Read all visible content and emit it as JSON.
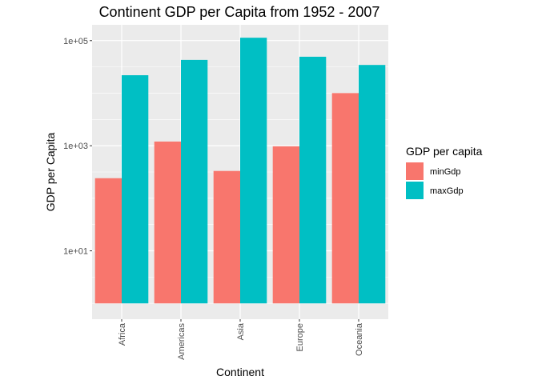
{
  "chart_data": {
    "type": "bar",
    "title": "Continent GDP per Capita from 1952 - 2007",
    "xlabel": "Continent",
    "ylabel": "GDP per Capita",
    "y_scale": "log10",
    "ylim": [
      0.5,
      200000
    ],
    "yticks": [
      10,
      1000,
      100000
    ],
    "ytick_labels": [
      "1e+01",
      "1e+03",
      "1e+05"
    ],
    "categories": [
      "Africa",
      "Americas",
      "Asia",
      "Europe",
      "Oceania"
    ],
    "legend_title": "GDP per capita",
    "legend_position": "right",
    "grid": true,
    "series": [
      {
        "name": "minGdp",
        "color": "#F8766D",
        "values": [
          241,
          1201,
          331,
          974,
          10040
        ]
      },
      {
        "name": "maxGdp",
        "color": "#00BFC4",
        "values": [
          21951,
          42952,
          113523,
          49357,
          34435
        ]
      }
    ]
  }
}
